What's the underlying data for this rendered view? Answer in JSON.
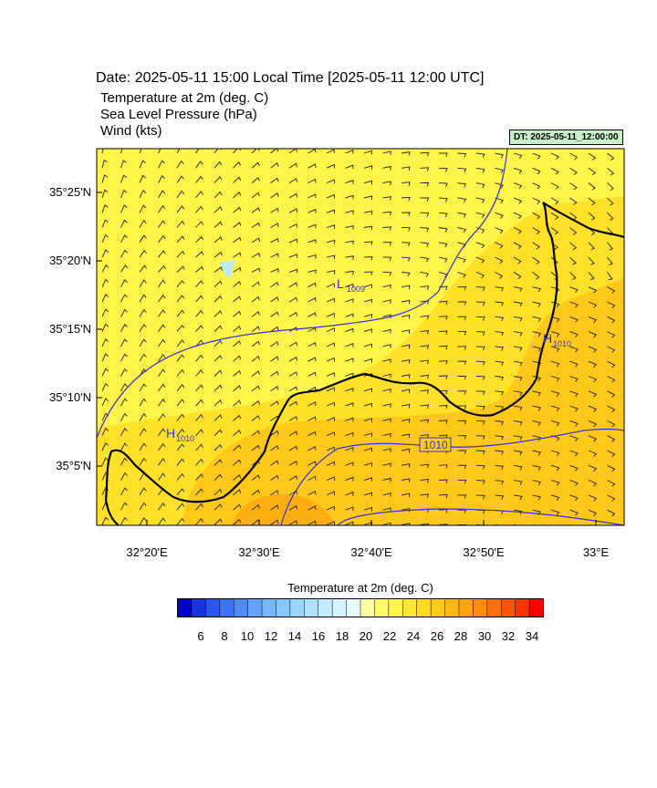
{
  "header": {
    "date_line": "Date: 2025-05-11  15:00 Local Time [2025-05-11  12:00 UTC]",
    "field_1": "Temperature at 2m   (deg. C)",
    "field_2": "Sea Level Pressure   (hPa)",
    "field_3": "Wind   (kts)",
    "dt_label": "DT: 2025-05-11_12:00:00"
  },
  "map": {
    "lat_labels": [
      "35°25'N",
      "35°20'N",
      "35°15'N",
      "35°10'N",
      "35°5'N"
    ],
    "lon_labels": [
      "32°20'E",
      "32°30'E",
      "32°40'E",
      "32°50'E",
      "33°E"
    ],
    "pressure_labels": {
      "low": "L",
      "low_value": "1009",
      "high_west": "H",
      "high_west_value": "1010",
      "high_east": "H",
      "high_east_value": "1010",
      "isobar": "1010"
    },
    "colors": {
      "temp_22_24": "#fff44a",
      "temp_24_26": "#ffe12a",
      "temp_26_28": "#ffc81a",
      "temp_28_30": "#ffae12",
      "temp_30_32": "#ff8a10",
      "cold_spot": "#bfeaf2",
      "isobar": "#3333cc",
      "coastline": "#000000"
    }
  },
  "colorbar": {
    "title": "Temperature at 2m  (deg. C)",
    "ticks": [
      "6",
      "8",
      "10",
      "12",
      "14",
      "16",
      "18",
      "20",
      "22",
      "24",
      "26",
      "28",
      "30",
      "32",
      "34"
    ],
    "colors": [
      "#0000cc",
      "#1a33e0",
      "#2b55f0",
      "#3f73f5",
      "#4f8cf8",
      "#62a3fa",
      "#74b7fc",
      "#86c8fd",
      "#98d6fe",
      "#aee2fe",
      "#c2ecfe",
      "#d6f4ff",
      "#e6f9ff",
      "#ffffa8",
      "#fffa6a",
      "#fff44a",
      "#ffe830",
      "#ffdc20",
      "#ffcb14",
      "#ffb90e",
      "#ffa40a",
      "#ff8c08",
      "#ff7006",
      "#ff5404",
      "#ff3202",
      "#ff0000"
    ]
  }
}
